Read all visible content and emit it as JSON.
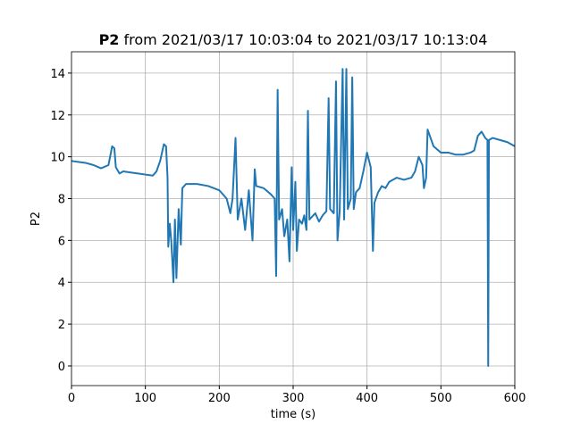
{
  "chart_data": {
    "type": "line",
    "title_bold": "P2",
    "title": "from 2021/03/17 10:03:04 to 2021/03/17 10:13:04",
    "xlabel": "time (s)",
    "ylabel": "P2",
    "xlim": [
      0,
      600
    ],
    "ylim": [
      -0.94,
      15.02
    ],
    "xticks": [
      0,
      100,
      200,
      300,
      400,
      500,
      600
    ],
    "yticks": [
      0,
      2,
      4,
      6,
      8,
      10,
      12,
      14
    ],
    "grid": true,
    "series": [
      {
        "color": "#1f77b4",
        "x": [
          0,
          10,
          20,
          30,
          40,
          50,
          55,
          58,
          60,
          65,
          70,
          80,
          90,
          100,
          110,
          115,
          120,
          125,
          128,
          130,
          131,
          133,
          135,
          138,
          140,
          142,
          145,
          148,
          150,
          155,
          170,
          185,
          200,
          210,
          215,
          218,
          222,
          225,
          230,
          235,
          240,
          245,
          248,
          250,
          260,
          270,
          275,
          277,
          279,
          281,
          285,
          288,
          292,
          295,
          298,
          300,
          303,
          305,
          308,
          312,
          315,
          318,
          320,
          322,
          330,
          335,
          340,
          345,
          348,
          350,
          355,
          358,
          360,
          363,
          367,
          369,
          372,
          374,
          378,
          380,
          382,
          385,
          390,
          395,
          400,
          405,
          408,
          410,
          415,
          420,
          425,
          430,
          440,
          450,
          460,
          465,
          470,
          475,
          477,
          480,
          482,
          485,
          490,
          500,
          510,
          520,
          530,
          540,
          545,
          550,
          555,
          560,
          563,
          564,
          565,
          570,
          580,
          590,
          600
        ],
        "values": [
          9.8,
          9.75,
          9.7,
          9.6,
          9.45,
          9.6,
          10.5,
          10.4,
          9.5,
          9.2,
          9.3,
          9.25,
          9.2,
          9.15,
          9.1,
          9.3,
          9.8,
          10.6,
          10.5,
          9.0,
          5.7,
          6.8,
          6.0,
          4.0,
          7.0,
          4.2,
          7.5,
          5.8,
          8.5,
          8.7,
          8.7,
          8.6,
          8.4,
          8.0,
          7.3,
          8.0,
          10.9,
          7.0,
          8.0,
          6.5,
          8.4,
          6.0,
          9.4,
          8.6,
          8.5,
          8.2,
          8.0,
          4.3,
          13.2,
          7.0,
          7.5,
          6.2,
          7.0,
          5.0,
          9.5,
          6.5,
          8.8,
          5.5,
          7.0,
          6.8,
          7.2,
          6.5,
          12.2,
          7.0,
          7.3,
          6.9,
          7.2,
          7.4,
          12.8,
          7.5,
          7.3,
          13.6,
          6.0,
          7.4,
          14.2,
          7.0,
          14.2,
          7.5,
          8.0,
          13.8,
          7.5,
          8.3,
          8.5,
          9.3,
          10.2,
          9.5,
          5.5,
          7.8,
          8.3,
          8.6,
          8.5,
          8.8,
          9.0,
          8.9,
          9.0,
          9.3,
          10.0,
          9.6,
          8.5,
          9.0,
          11.3,
          11.0,
          10.5,
          10.2,
          10.2,
          10.1,
          10.1,
          10.2,
          10.3,
          11.0,
          11.2,
          10.9,
          10.8,
          0.0,
          10.8,
          10.9,
          10.8,
          10.7,
          10.5
        ]
      }
    ]
  }
}
